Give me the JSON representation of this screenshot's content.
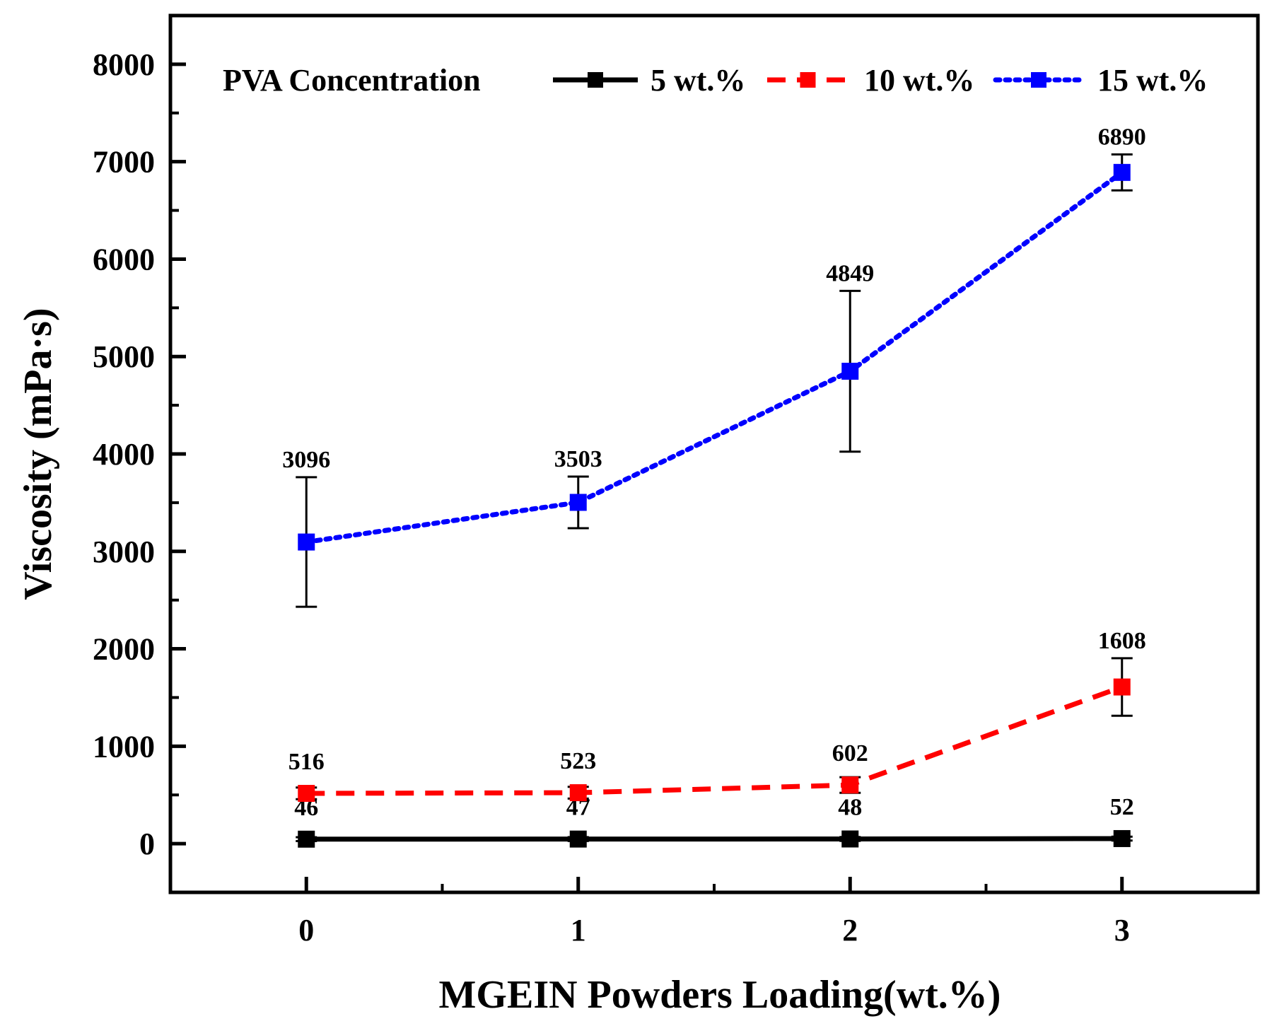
{
  "chart_data": {
    "type": "line",
    "xlabel": "MGEIN Powders Loading(wt.%)",
    "ylabel": "Viscosity (mPa·s)",
    "xlim": [
      -0.5,
      3.5
    ],
    "ylim": [
      -500,
      8500
    ],
    "x_ticks": [
      0,
      1,
      2,
      3
    ],
    "x_tick_labels": [
      "0",
      "1",
      "2",
      "3"
    ],
    "y_ticks": [
      0,
      1000,
      2000,
      3000,
      4000,
      5000,
      6000,
      7000,
      8000
    ],
    "y_tick_labels": [
      "0",
      "1000",
      "2000",
      "3000",
      "4000",
      "5000",
      "6000",
      "7000",
      "8000"
    ],
    "x": [
      0,
      1,
      2,
      3
    ],
    "legend": {
      "title": "PVA Concentration",
      "placement": "top"
    },
    "series": [
      {
        "name": "5 wt.%",
        "color": "#000000",
        "line_style": "solid",
        "values": [
          46,
          47,
          48,
          52
        ],
        "errors": [
          20,
          20,
          20,
          20
        ],
        "labels": [
          "46",
          "47",
          "48",
          "52"
        ]
      },
      {
        "name": "10 wt.%",
        "color": "#ff0000",
        "line_style": "dashed",
        "values": [
          516,
          523,
          602,
          1608
        ],
        "errors": [
          60,
          60,
          80,
          295
        ],
        "labels": [
          "516",
          "523",
          "602",
          "1608"
        ]
      },
      {
        "name": "15 wt.%",
        "color": "#0000ff",
        "line_style": "dotted",
        "values": [
          3096,
          3503,
          4849,
          6890
        ],
        "errors": [
          665,
          265,
          825,
          185
        ],
        "labels": [
          "3096",
          "3503",
          "4849",
          "6890"
        ]
      }
    ]
  }
}
